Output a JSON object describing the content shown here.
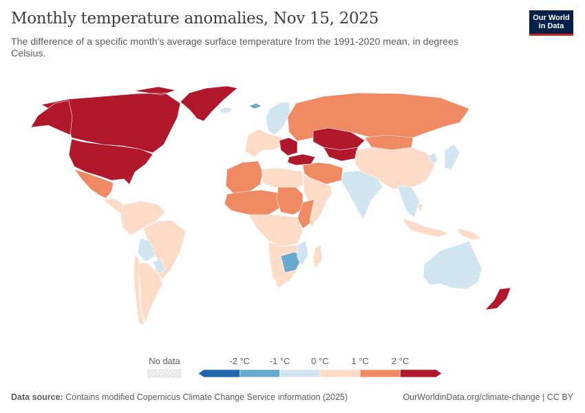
{
  "header": {
    "title": "Monthly temperature anomalies, Nov 15, 2025",
    "subtitle": "The difference of a specific month's average surface temperature from the 1991-2020 mean, in degrees Celsius."
  },
  "logo": {
    "line1": "Our World",
    "line2": "in Data",
    "bg_color": "#002147",
    "accent_color": "#ce261e"
  },
  "legend": {
    "no_data_label": "No data",
    "bins": [
      {
        "label": "below -2 °C",
        "color": "#2166ac"
      },
      {
        "label": "-2 to -1 °C",
        "color": "#67a9cf"
      },
      {
        "label": "-1 to 0 °C",
        "color": "#d1e5f0"
      },
      {
        "label": "0 to 1 °C",
        "color": "#fddbc7"
      },
      {
        "label": "1 to 2 °C",
        "color": "#ef8a62"
      },
      {
        "label": "above 2 °C",
        "color": "#b2182b"
      }
    ],
    "ticks": [
      "-2 °C",
      "-1 °C",
      "0 °C",
      "1 °C",
      "2 °C"
    ]
  },
  "chart_data": {
    "type": "choropleth",
    "title": "Monthly temperature anomalies, Nov 15, 2025",
    "unit": "°C",
    "date": "Nov 15, 2025",
    "regions": [
      {
        "name": "Canada",
        "category": "above 2 °C"
      },
      {
        "name": "Greenland",
        "category": "above 2 °C"
      },
      {
        "name": "Alaska",
        "category": "above 2 °C"
      },
      {
        "name": "United States",
        "category": "above 2 °C"
      },
      {
        "name": "Mexico",
        "category": "1 to 2 °C"
      },
      {
        "name": "Central America",
        "category": "0 to 1 °C"
      },
      {
        "name": "Northern South America",
        "category": "0 to 1 °C"
      },
      {
        "name": "Brazil",
        "category": "0 to 1 °C"
      },
      {
        "name": "Bolivia",
        "category": "-1 to 0 °C"
      },
      {
        "name": "Paraguay",
        "category": "-1 to 0 °C"
      },
      {
        "name": "Argentina",
        "category": "0 to 1 °C"
      },
      {
        "name": "Chile",
        "category": "0 to 1 °C"
      },
      {
        "name": "Iceland",
        "category": "-1 to 0 °C"
      },
      {
        "name": "Svalbard",
        "category": "-2 to -1 °C"
      },
      {
        "name": "Scandinavia",
        "category": "-1 to 0 °C"
      },
      {
        "name": "Western Europe",
        "category": "0 to 1 °C"
      },
      {
        "name": "Balkans",
        "category": "above 2 °C"
      },
      {
        "name": "Turkey",
        "category": "above 2 °C"
      },
      {
        "name": "Russia",
        "category": "1 to 2 °C"
      },
      {
        "name": "Kazakhstan",
        "category": "above 2 °C"
      },
      {
        "name": "Central Asia",
        "category": "above 2 °C"
      },
      {
        "name": "Mongolia",
        "category": "1 to 2 °C"
      },
      {
        "name": "China",
        "category": "0 to 1 °C"
      },
      {
        "name": "Korea and Japan",
        "category": "-1 to 0 °C"
      },
      {
        "name": "India",
        "category": "-1 to 0 °C"
      },
      {
        "name": "Southeast Asia",
        "category": "-1 to 0 °C"
      },
      {
        "name": "Middle East",
        "category": "1 to 2 °C"
      },
      {
        "name": "Arabian Peninsula",
        "category": "0 to 1 °C"
      },
      {
        "name": "Northwest Africa",
        "category": "1 to 2 °C"
      },
      {
        "name": "Sahel",
        "category": "1 to 2 °C"
      },
      {
        "name": "Egypt and Libya",
        "category": "0 to 1 °C"
      },
      {
        "name": "Sudan",
        "category": "1 to 2 °C"
      },
      {
        "name": "Ethiopia",
        "category": "1 to 2 °C"
      },
      {
        "name": "Somalia",
        "category": "0 to 1 °C"
      },
      {
        "name": "Central Africa",
        "category": "0 to 1 °C"
      },
      {
        "name": "Southern Africa",
        "category": "0 to 1 °C"
      },
      {
        "name": "Botswana and Zimbabwe",
        "category": "-2 to -1 °C"
      },
      {
        "name": "Mozambique",
        "category": "-1 to 0 °C"
      },
      {
        "name": "Madagascar",
        "category": "0 to 1 °C"
      },
      {
        "name": "Indonesia",
        "category": "0 to 1 °C"
      },
      {
        "name": "Papua New Guinea",
        "category": "0 to 1 °C"
      },
      {
        "name": "Australia",
        "category": "-1 to 0 °C"
      },
      {
        "name": "New Zealand",
        "category": "above 2 °C"
      }
    ]
  },
  "footer": {
    "source_label": "Data source:",
    "source_text": "Contains modified Copernicus Climate Change Service information (2025)",
    "url_text": "OurWorldinData.org/climate-change | CC BY"
  }
}
